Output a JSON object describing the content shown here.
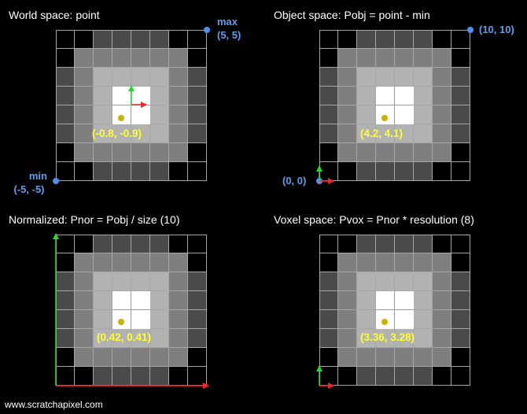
{
  "colors": {
    "black": "#000000",
    "dark": "#4a4a4a",
    "mid": "#7f7f7f",
    "light": "#b2b2b2",
    "center": "#ffffff",
    "grid_line": "#a6a6a6",
    "point": "#c8b400",
    "label_yellow": "#ffff33",
    "corner_blue": "#5aa0f0",
    "axis_red": "#ff2020",
    "axis_green": "#22dd22"
  },
  "voxel_grid": {
    "resolution": 8,
    "levels": [
      [
        "black",
        "black",
        "dark",
        "dark",
        "dark",
        "dark",
        "black",
        "black"
      ],
      [
        "black",
        "mid",
        "mid",
        "mid",
        "mid",
        "mid",
        "mid",
        "black"
      ],
      [
        "dark",
        "mid",
        "light",
        "light",
        "light",
        "light",
        "mid",
        "dark"
      ],
      [
        "dark",
        "mid",
        "light",
        "center",
        "center",
        "light",
        "mid",
        "dark"
      ],
      [
        "dark",
        "mid",
        "light",
        "center",
        "center",
        "light",
        "mid",
        "dark"
      ],
      [
        "dark",
        "mid",
        "light",
        "light",
        "light",
        "light",
        "mid",
        "dark"
      ],
      [
        "black",
        "mid",
        "mid",
        "mid",
        "mid",
        "mid",
        "mid",
        "black"
      ],
      [
        "black",
        "black",
        "dark",
        "dark",
        "dark",
        "dark",
        "black",
        "black"
      ]
    ]
  },
  "panels": [
    {
      "title": "World space: point",
      "point_label": "(-0.8, -0.9)",
      "max_label_line1": "max",
      "max_label_line2": "(5, 5)",
      "min_label_line1": "min",
      "min_label_line2": "(-5, -5)"
    },
    {
      "title": "Object space: Pobj = point - min",
      "point_label": "(4.2, 4.1)",
      "max_label": "(10, 10)",
      "min_label": "(0, 0)"
    },
    {
      "title": "Normalized: Pnor = Pobj / size (10)",
      "point_label": "(0.42, 0.41)"
    },
    {
      "title": "Voxel space: Pvox = Pnor * resolution (8)",
      "point_label": "(3.36, 3.28)"
    }
  ],
  "footer": "www.scratchapixel.com"
}
